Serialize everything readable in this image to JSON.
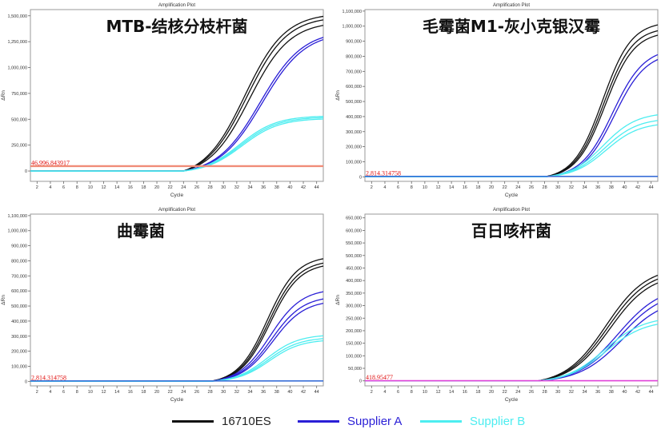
{
  "legend": [
    {
      "label": "16710ES",
      "color": "#111111"
    },
    {
      "label": "Supplier A",
      "color": "#2a1fd6"
    },
    {
      "label": "Supplier B",
      "color": "#4dedf0"
    }
  ],
  "chart_data": [
    {
      "type": "line",
      "title": "Amplification Plot",
      "big_label": "MTB-结核分枝杆菌",
      "xlabel": "Cycle",
      "ylabel": "ΔRn",
      "xlim": [
        1,
        45
      ],
      "ylim": [
        -100000,
        1560000
      ],
      "xticks": [
        2,
        4,
        6,
        8,
        10,
        12,
        14,
        16,
        18,
        20,
        22,
        24,
        26,
        28,
        30,
        32,
        34,
        36,
        38,
        40,
        42,
        44
      ],
      "yticks": [
        0,
        250000,
        500000,
        750000,
        1000000,
        1250000,
        1500000
      ],
      "ytick_labels": [
        "0",
        "250,000",
        "500,000",
        "750,000",
        "1,000,000",
        "1,250,000",
        "1,500,000"
      ],
      "threshold": {
        "value": 46996.843917,
        "label": "46,996.843917",
        "color": "#f08c78"
      },
      "onset_cycle": 24,
      "series": [
        {
          "group": "16710ES",
          "color": "#111111",
          "ct": 33.2,
          "plateau": 1600000,
          "slope": 0.33
        },
        {
          "group": "16710ES",
          "color": "#111111",
          "ct": 33.5,
          "plateau": 1560000,
          "slope": 0.33
        },
        {
          "group": "16710ES",
          "color": "#111111",
          "ct": 33.9,
          "plateau": 1500000,
          "slope": 0.33
        },
        {
          "group": "Supplier A",
          "color": "#2a1fd6",
          "ct": 35.5,
          "plateau": 1400000,
          "slope": 0.31
        },
        {
          "group": "Supplier A",
          "color": "#2a1fd6",
          "ct": 35.8,
          "plateau": 1380000,
          "slope": 0.31
        },
        {
          "group": "Supplier B",
          "color": "#4dedf0",
          "ct": 32.4,
          "plateau": 560000,
          "slope": 0.36
        },
        {
          "group": "Supplier B",
          "color": "#4dedf0",
          "ct": 32.6,
          "plateau": 545000,
          "slope": 0.36
        },
        {
          "group": "Supplier B",
          "color": "#4dedf0",
          "ct": 32.8,
          "plateau": 530000,
          "slope": 0.36
        }
      ]
    },
    {
      "type": "line",
      "title": "Amplification Plot",
      "big_label": "毛霉菌M1-灰小克银汉霉",
      "xlabel": "Cycle",
      "ylabel": "ΔRn",
      "xlim": [
        1,
        45
      ],
      "ylim": [
        -30000,
        1110000
      ],
      "xticks": [
        2,
        4,
        6,
        8,
        10,
        12,
        14,
        16,
        18,
        20,
        22,
        24,
        26,
        28,
        30,
        32,
        34,
        36,
        38,
        40,
        42,
        44
      ],
      "yticks": [
        0,
        100000,
        200000,
        300000,
        400000,
        500000,
        600000,
        700000,
        800000,
        900000,
        1000000,
        1100000
      ],
      "ytick_labels": [
        "0",
        "100,000",
        "200,000",
        "300,000",
        "400,000",
        "500,000",
        "600,000",
        "700,000",
        "800,000",
        "900,000",
        "1,000,000",
        "1,100,000"
      ],
      "threshold": {
        "value": 2814.314758,
        "label": "2,814.314758",
        "color": "#3a6fd8"
      },
      "onset_cycle": 28,
      "series": [
        {
          "group": "16710ES",
          "color": "#111111",
          "ct": 36.7,
          "plateau": 1050000,
          "slope": 0.46
        },
        {
          "group": "16710ES",
          "color": "#111111",
          "ct": 36.9,
          "plateau": 1010000,
          "slope": 0.46
        },
        {
          "group": "16710ES",
          "color": "#111111",
          "ct": 37.1,
          "plateau": 980000,
          "slope": 0.46
        },
        {
          "group": "Supplier A",
          "color": "#2a1fd6",
          "ct": 38.2,
          "plateau": 870000,
          "slope": 0.42
        },
        {
          "group": "Supplier A",
          "color": "#2a1fd6",
          "ct": 38.5,
          "plateau": 840000,
          "slope": 0.42
        },
        {
          "group": "Supplier B",
          "color": "#4dedf0",
          "ct": 36.8,
          "plateau": 440000,
          "slope": 0.4
        },
        {
          "group": "Supplier B",
          "color": "#4dedf0",
          "ct": 37.0,
          "plateau": 400000,
          "slope": 0.4
        },
        {
          "group": "Supplier B",
          "color": "#4dedf0",
          "ct": 37.2,
          "plateau": 370000,
          "slope": 0.4
        }
      ]
    },
    {
      "type": "line",
      "title": "Amplification Plot",
      "big_label": "曲霉菌",
      "xlabel": "Cycle",
      "ylabel": "ΔRn",
      "xlim": [
        1,
        45
      ],
      "ylim": [
        -30000,
        1110000
      ],
      "xticks": [
        2,
        4,
        6,
        8,
        10,
        12,
        14,
        16,
        18,
        20,
        22,
        24,
        26,
        28,
        30,
        32,
        34,
        36,
        38,
        40,
        42,
        44
      ],
      "yticks": [
        0,
        100000,
        200000,
        300000,
        400000,
        500000,
        600000,
        700000,
        800000,
        900000,
        1000000,
        1100000
      ],
      "ytick_labels": [
        "0",
        "100,000",
        "200,000",
        "300,000",
        "400,000",
        "500,000",
        "600,000",
        "700,000",
        "800,000",
        "900,000",
        "1,000,000",
        "1,100,000"
      ],
      "threshold": {
        "value": 2814.314758,
        "label": "2,814.314758",
        "color": "#3a6fd8"
      },
      "onset_cycle": 28,
      "series": [
        {
          "group": "16710ES",
          "color": "#111111",
          "ct": 36.6,
          "plateau": 850000,
          "slope": 0.45
        },
        {
          "group": "16710ES",
          "color": "#111111",
          "ct": 36.8,
          "plateau": 820000,
          "slope": 0.45
        },
        {
          "group": "16710ES",
          "color": "#111111",
          "ct": 37.0,
          "plateau": 800000,
          "slope": 0.45
        },
        {
          "group": "Supplier A",
          "color": "#2a1fd6",
          "ct": 37.0,
          "plateau": 630000,
          "slope": 0.42
        },
        {
          "group": "Supplier A",
          "color": "#2a1fd6",
          "ct": 37.2,
          "plateau": 580000,
          "slope": 0.42
        },
        {
          "group": "Supplier A",
          "color": "#2a1fd6",
          "ct": 37.4,
          "plateau": 550000,
          "slope": 0.42
        },
        {
          "group": "Supplier B",
          "color": "#4dedf0",
          "ct": 36.5,
          "plateau": 320000,
          "slope": 0.42
        },
        {
          "group": "Supplier B",
          "color": "#4dedf0",
          "ct": 36.7,
          "plateau": 300000,
          "slope": 0.42
        },
        {
          "group": "Supplier B",
          "color": "#4dedf0",
          "ct": 36.9,
          "plateau": 285000,
          "slope": 0.42
        }
      ]
    },
    {
      "type": "line",
      "title": "Amplification Plot",
      "big_label": "百日咳杆菌",
      "xlabel": "Cycle",
      "ylabel": "ΔRn",
      "xlim": [
        1,
        45
      ],
      "ylim": [
        -20000,
        665000
      ],
      "xticks": [
        2,
        4,
        6,
        8,
        10,
        12,
        14,
        16,
        18,
        20,
        22,
        24,
        26,
        28,
        30,
        32,
        34,
        36,
        38,
        40,
        42,
        44
      ],
      "yticks": [
        0,
        50000,
        100000,
        150000,
        200000,
        250000,
        300000,
        350000,
        400000,
        450000,
        500000,
        550000,
        600000,
        650000
      ],
      "ytick_labels": [
        "0",
        "50,000",
        "100,000",
        "150,000",
        "200,000",
        "250,000",
        "300,000",
        "350,000",
        "400,000",
        "450,000",
        "500,000",
        "550,000",
        "600,000",
        "650,000"
      ],
      "threshold": {
        "value": 418.95477,
        "label": "418.95477",
        "color": "#e040d8"
      },
      "onset_cycle": 27,
      "series": [
        {
          "group": "16710ES",
          "color": "#111111",
          "ct": 37.2,
          "plateau": 470000,
          "slope": 0.33
        },
        {
          "group": "16710ES",
          "color": "#111111",
          "ct": 37.5,
          "plateau": 455000,
          "slope": 0.33
        },
        {
          "group": "16710ES",
          "color": "#111111",
          "ct": 37.8,
          "plateau": 440000,
          "slope": 0.33
        },
        {
          "group": "Supplier A",
          "color": "#2a1fd6",
          "ct": 39.0,
          "plateau": 390000,
          "slope": 0.31
        },
        {
          "group": "Supplier A",
          "color": "#2a1fd6",
          "ct": 39.3,
          "plateau": 370000,
          "slope": 0.31
        },
        {
          "group": "Supplier A",
          "color": "#2a1fd6",
          "ct": 39.6,
          "plateau": 340000,
          "slope": 0.31
        },
        {
          "group": "Supplier B",
          "color": "#4dedf0",
          "ct": 37.0,
          "plateau": 265000,
          "slope": 0.34
        },
        {
          "group": "Supplier B",
          "color": "#4dedf0",
          "ct": 37.2,
          "plateau": 250000,
          "slope": 0.34
        }
      ]
    }
  ]
}
